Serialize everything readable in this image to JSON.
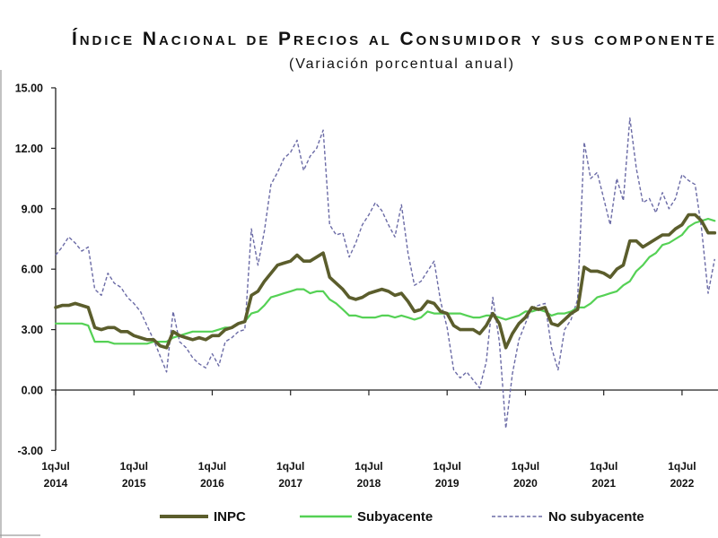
{
  "chart_data": {
    "type": "line",
    "title": "Índice Nacional de Precios al Consumidor y sus componente",
    "subtitle": "(Variación porcentual anual)",
    "ylim": [
      -3,
      15
    ],
    "yticks": [
      "15.00",
      "12.00",
      "9.00",
      "6.00",
      "3.00",
      "0.00",
      "-3.00"
    ],
    "xticks": [
      {
        "line1": "1qJul",
        "line2": "2014"
      },
      {
        "line1": "1qJul",
        "line2": "2015"
      },
      {
        "line1": "1qJul",
        "line2": "2016"
      },
      {
        "line1": "1qJul",
        "line2": "2017"
      },
      {
        "line1": "1qJul",
        "line2": "2018"
      },
      {
        "line1": "1qJul",
        "line2": "2019"
      },
      {
        "line1": "1qJul",
        "line2": "2020"
      },
      {
        "line1": "1qJul",
        "line2": "2021"
      },
      {
        "line1": "1qJul",
        "line2": "2022"
      }
    ],
    "grid": false,
    "legend_position": "bottom",
    "x": [
      "2014-07",
      "2014-08",
      "2014-09",
      "2014-10",
      "2014-11",
      "2014-12",
      "2015-01",
      "2015-02",
      "2015-03",
      "2015-04",
      "2015-05",
      "2015-06",
      "2015-07",
      "2015-08",
      "2015-09",
      "2015-10",
      "2015-11",
      "2015-12",
      "2016-01",
      "2016-02",
      "2016-03",
      "2016-04",
      "2016-05",
      "2016-06",
      "2016-07",
      "2016-08",
      "2016-09",
      "2016-10",
      "2016-11",
      "2016-12",
      "2017-01",
      "2017-02",
      "2017-03",
      "2017-04",
      "2017-05",
      "2017-06",
      "2017-07",
      "2017-08",
      "2017-09",
      "2017-10",
      "2017-11",
      "2017-12",
      "2018-01",
      "2018-02",
      "2018-03",
      "2018-04",
      "2018-05",
      "2018-06",
      "2018-07",
      "2018-08",
      "2018-09",
      "2018-10",
      "2018-11",
      "2018-12",
      "2019-01",
      "2019-02",
      "2019-03",
      "2019-04",
      "2019-05",
      "2019-06",
      "2019-07",
      "2019-08",
      "2019-09",
      "2019-10",
      "2019-11",
      "2019-12",
      "2020-01",
      "2020-02",
      "2020-03",
      "2020-04",
      "2020-05",
      "2020-06",
      "2020-07",
      "2020-08",
      "2020-09",
      "2020-10",
      "2020-11",
      "2020-12",
      "2021-01",
      "2021-02",
      "2021-03",
      "2021-04",
      "2021-05",
      "2021-06",
      "2021-07",
      "2021-08",
      "2021-09",
      "2021-10",
      "2021-11",
      "2021-12",
      "2022-01",
      "2022-02",
      "2022-03",
      "2022-04",
      "2022-05",
      "2022-06",
      "2022-07",
      "2022-08",
      "2022-09",
      "2022-10",
      "2022-11",
      "2022-12"
    ],
    "series": [
      {
        "name": "INPC",
        "color": "#5b5d2c",
        "line_style": "solid",
        "values": [
          4.1,
          4.2,
          4.2,
          4.3,
          4.2,
          4.1,
          3.1,
          3.0,
          3.1,
          3.1,
          2.9,
          2.9,
          2.7,
          2.6,
          2.5,
          2.5,
          2.2,
          2.1,
          2.9,
          2.7,
          2.6,
          2.5,
          2.6,
          2.5,
          2.7,
          2.7,
          3.0,
          3.1,
          3.3,
          3.4,
          4.7,
          4.9,
          5.4,
          5.8,
          6.2,
          6.3,
          6.4,
          6.7,
          6.4,
          6.4,
          6.6,
          6.8,
          5.6,
          5.3,
          5.0,
          4.6,
          4.5,
          4.6,
          4.8,
          4.9,
          5.0,
          4.9,
          4.7,
          4.8,
          4.4,
          3.9,
          4.0,
          4.4,
          4.3,
          3.9,
          3.8,
          3.2,
          3.0,
          3.0,
          3.0,
          2.8,
          3.2,
          3.8,
          3.3,
          2.1,
          2.8,
          3.3,
          3.6,
          4.1,
          4.0,
          4.1,
          3.3,
          3.2,
          3.5,
          3.8,
          4.0,
          6.1,
          5.9,
          5.9,
          5.8,
          5.6,
          6.0,
          6.2,
          7.4,
          7.4,
          7.1,
          7.3,
          7.5,
          7.7,
          7.7,
          8.0,
          8.2,
          8.7,
          8.7,
          8.4,
          7.8,
          7.8
        ]
      },
      {
        "name": "Subyacente",
        "color": "#55d155",
        "line_style": "solid",
        "values": [
          3.3,
          3.3,
          3.3,
          3.3,
          3.3,
          3.2,
          2.4,
          2.4,
          2.4,
          2.3,
          2.3,
          2.3,
          2.3,
          2.3,
          2.3,
          2.4,
          2.4,
          2.4,
          2.6,
          2.7,
          2.8,
          2.9,
          2.9,
          2.9,
          2.9,
          3.0,
          3.1,
          3.1,
          3.3,
          3.4,
          3.8,
          3.9,
          4.2,
          4.6,
          4.7,
          4.8,
          4.9,
          5.0,
          5.0,
          4.8,
          4.9,
          4.9,
          4.5,
          4.3,
          4.0,
          3.7,
          3.7,
          3.6,
          3.6,
          3.6,
          3.7,
          3.7,
          3.6,
          3.7,
          3.6,
          3.5,
          3.6,
          3.9,
          3.8,
          3.8,
          3.8,
          3.8,
          3.8,
          3.7,
          3.6,
          3.6,
          3.7,
          3.7,
          3.6,
          3.5,
          3.6,
          3.7,
          3.9,
          3.9,
          4.0,
          3.9,
          3.7,
          3.8,
          3.8,
          3.9,
          4.1,
          4.1,
          4.3,
          4.6,
          4.7,
          4.8,
          4.9,
          5.2,
          5.4,
          5.9,
          6.2,
          6.6,
          6.8,
          7.2,
          7.3,
          7.5,
          7.7,
          8.1,
          8.3,
          8.4,
          8.5,
          8.4
        ]
      },
      {
        "name": "No subyacente",
        "color": "#6b6ba6",
        "line_style": "dashed",
        "values": [
          6.7,
          7.1,
          7.6,
          7.3,
          6.9,
          7.1,
          5.0,
          4.7,
          5.8,
          5.3,
          5.1,
          4.6,
          4.3,
          3.9,
          3.2,
          2.5,
          1.7,
          0.9,
          3.9,
          2.4,
          2.1,
          1.6,
          1.3,
          1.1,
          1.8,
          1.2,
          2.4,
          2.6,
          2.9,
          3.0,
          8.0,
          6.2,
          7.9,
          10.2,
          10.8,
          11.5,
          11.8,
          12.4,
          10.9,
          11.6,
          12.0,
          12.9,
          8.2,
          7.7,
          7.8,
          6.6,
          7.3,
          8.2,
          8.7,
          9.3,
          8.9,
          8.2,
          7.6,
          9.2,
          6.8,
          5.2,
          5.4,
          5.9,
          6.4,
          4.4,
          3.1,
          1.0,
          0.6,
          0.9,
          0.5,
          0.1,
          1.4,
          4.6,
          2.4,
          -1.9,
          0.8,
          2.5,
          3.3,
          4.1,
          4.2,
          4.3,
          2.1,
          1.0,
          3.0,
          3.5,
          4.5,
          12.3,
          10.5,
          10.8,
          9.5,
          8.2,
          10.5,
          9.4,
          13.5,
          11.0,
          9.3,
          9.5,
          8.8,
          9.8,
          9.0,
          9.5,
          10.7,
          10.4,
          10.2,
          8.0,
          4.8,
          6.5
        ]
      }
    ]
  }
}
